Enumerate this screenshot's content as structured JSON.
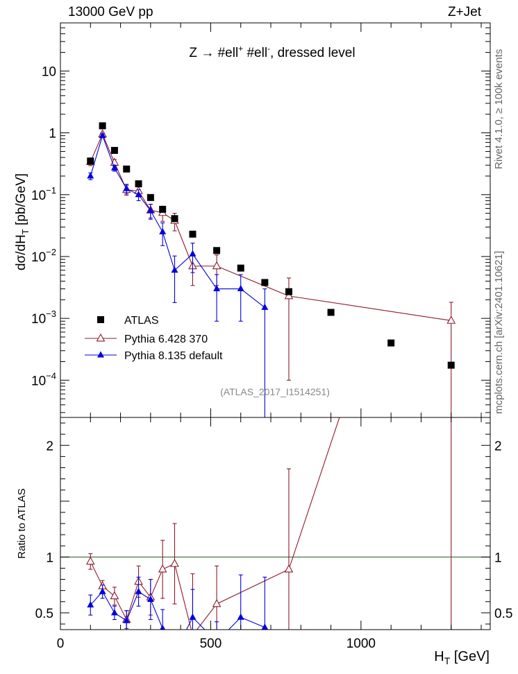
{
  "header": {
    "energy_label": "13000 GeV pp",
    "process_label": "Z+Jet"
  },
  "side_labels": {
    "rivet": "Rivet 4.1.0, ≥ 100k events",
    "source": "mcplots.cern.ch [arXiv:2401.10621]"
  },
  "chart_data": {
    "type": "scatter",
    "title": "Z → #ell⁺ #ell⁻, dressed level",
    "title_parts": {
      "z": "Z",
      "arrow": "→",
      "ell": "#ell",
      "plus": "+",
      "minus": "-",
      "rest": ", dressed level"
    },
    "ylabel": "dσ/dH_T [pb/GeV]",
    "ylabel_parts": {
      "main": "dσ/dH",
      "sub": "T",
      "unit": " [pb/GeV]"
    },
    "xlabel": "H_T [GeV]",
    "xlabel_parts": {
      "main": "H",
      "sub": "T",
      "unit": " [GeV]"
    },
    "ratio_ylabel": "Ratio to ATLAS",
    "watermark": "(ATLAS_2017_I1514251)",
    "xlim": [
      0,
      1430
    ],
    "ylim": [
      2.5e-05,
      60
    ],
    "ratio_ylim": [
      0.35,
      2.25
    ],
    "x_ticks": [
      0,
      500,
      1000
    ],
    "y_ticks": [
      {
        "value": 10,
        "label": "10"
      },
      {
        "value": 1,
        "label": "1"
      },
      {
        "value": 0.1,
        "base": "10",
        "exp": "−1"
      },
      {
        "value": 0.01,
        "base": "10",
        "exp": "−2"
      },
      {
        "value": 0.001,
        "base": "10",
        "exp": "−3"
      },
      {
        "value": 0.0001,
        "base": "10",
        "exp": "−4"
      }
    ],
    "ratio_ticks": [
      0.5,
      1,
      2
    ],
    "legend": [
      {
        "name": "ATLAS",
        "marker": "square",
        "color": "#000000"
      },
      {
        "name": "Pythia 6.428 370",
        "marker": "open-triangle",
        "color": "#8b1a2a"
      },
      {
        "name": "Pythia 8.135 default",
        "marker": "filled-triangle",
        "color": "#0000dd"
      }
    ],
    "series": [
      {
        "name": "ATLAS",
        "x": [
          100,
          140,
          180,
          220,
          260,
          300,
          340,
          380,
          440,
          520,
          600,
          680,
          760,
          900,
          1100,
          1300
        ],
        "y": [
          0.35,
          1.3,
          0.52,
          0.26,
          0.15,
          0.09,
          0.058,
          0.041,
          0.023,
          0.0125,
          0.0065,
          0.0038,
          0.0027,
          0.00125,
          0.0004,
          0.000175
        ]
      },
      {
        "name": "Pythia 6.428 370",
        "x": [
          100,
          140,
          180,
          220,
          260,
          300,
          340,
          380,
          440,
          520,
          760,
          1300
        ],
        "y": [
          0.34,
          0.95,
          0.33,
          0.12,
          0.115,
          0.056,
          0.051,
          0.038,
          0.007,
          0.007,
          0.0023,
          0.00092
        ],
        "err_lo": [
          0.045,
          0.06,
          0.04,
          0.022,
          0.022,
          0.014,
          0.014,
          0.012,
          0.0036,
          0.0036,
          0.0022,
          0.0009
        ],
        "err_hi": [
          0.045,
          0.06,
          0.04,
          0.022,
          0.022,
          0.014,
          0.014,
          0.012,
          0.0036,
          0.0036,
          0.0022,
          0.0009
        ],
        "ratio": [
          0.96,
          0.74,
          0.65,
          0.44,
          0.78,
          0.64,
          0.89,
          0.94,
          0.3,
          0.58,
          0.89,
          5.25
        ],
        "ratio_err": [
          0.07,
          0.05,
          0.08,
          0.08,
          0.14,
          0.16,
          0.26,
          0.36,
          0.55,
          0.34,
          0.9,
          5.0
        ]
      },
      {
        "name": "Pythia 8.135 default",
        "x": [
          100,
          140,
          180,
          220,
          260,
          300,
          340,
          380,
          440,
          520,
          600,
          680
        ],
        "y": [
          0.2,
          0.9,
          0.27,
          0.125,
          0.1,
          0.055,
          0.025,
          0.006,
          0.011,
          0.003,
          0.003,
          0.0015
        ],
        "err_lo": [
          0.025,
          0.06,
          0.03,
          0.022,
          0.02,
          0.015,
          0.01,
          0.0042,
          0.0055,
          0.0021,
          0.0021,
          0.0015
        ],
        "err_hi": [
          0.025,
          0.06,
          0.03,
          0.022,
          0.02,
          0.015,
          0.01,
          0.0042,
          0.0055,
          0.0021,
          0.0021,
          0.0015
        ],
        "ratio": [
          0.57,
          0.69,
          0.5,
          0.43,
          0.69,
          0.62,
          0.36,
          0.14,
          0.46,
          0.24,
          0.46,
          0.37
        ],
        "ratio_err": [
          0.09,
          0.06,
          0.06,
          0.09,
          0.13,
          0.18,
          0.17,
          0.1,
          0.25,
          0.18,
          0.38,
          0.45
        ]
      }
    ]
  }
}
